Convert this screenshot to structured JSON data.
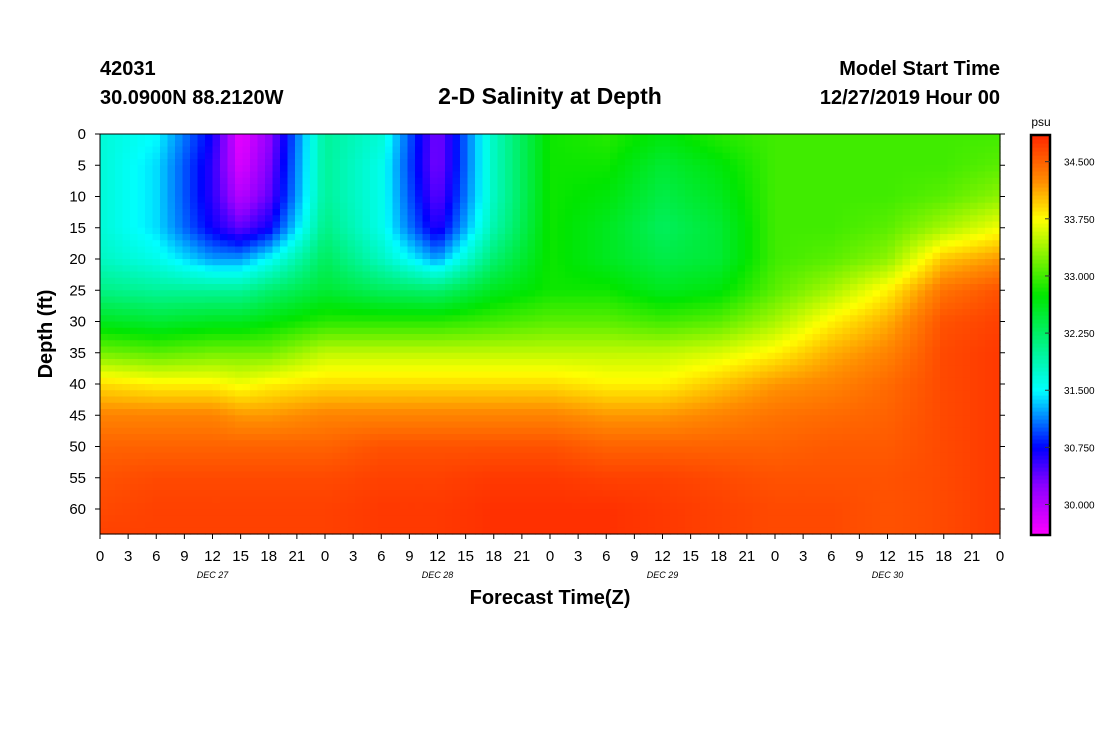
{
  "header": {
    "station_id": "42031",
    "location": "30.0900N 88.2120W",
    "title": "2-D Salinity at Depth",
    "model_start_label": "Model Start Time",
    "model_start_value": "12/27/2019 Hour 00"
  },
  "chart_data": {
    "type": "heatmap",
    "title": "2-D Salinity at Depth",
    "xlabel": "Forecast Time(Z)",
    "ylabel": "Depth (ft)",
    "xlim_hours": [
      0,
      96
    ],
    "ylim_ft": [
      0,
      64
    ],
    "x_tick_labels": [
      "0",
      "3",
      "6",
      "9",
      "12",
      "15",
      "18",
      "21",
      "0",
      "3",
      "6",
      "9",
      "12",
      "15",
      "18",
      "21",
      "0",
      "3",
      "6",
      "9",
      "12",
      "15",
      "18",
      "21",
      "0",
      "3",
      "6",
      "9",
      "12",
      "15",
      "18",
      "21",
      "0"
    ],
    "day_labels": [
      {
        "label": "DEC 27",
        "hour": 12
      },
      {
        "label": "DEC 28",
        "hour": 36
      },
      {
        "label": "DEC 29",
        "hour": 60
      },
      {
        "label": "DEC 30",
        "hour": 84
      }
    ],
    "y_ticks": [
      0,
      5,
      10,
      15,
      20,
      25,
      30,
      35,
      40,
      45,
      50,
      55,
      60
    ],
    "colorbar": {
      "unit": "psu",
      "min": 29.6,
      "max": 34.85,
      "ticks": [
        30.0,
        30.75,
        31.5,
        32.25,
        33.0,
        33.75,
        34.5
      ],
      "tick_labels": [
        "30.000",
        "30.750",
        "31.500",
        "32.250",
        "33.000",
        "33.750",
        "34.500"
      ]
    },
    "grid_hours": [
      0,
      6,
      12,
      15,
      18,
      24,
      30,
      36,
      42,
      48,
      54,
      60,
      66,
      72,
      78,
      84,
      90,
      96
    ],
    "grid_depths_ft": [
      0,
      5,
      10,
      15,
      20,
      25,
      30,
      35,
      40,
      45,
      50,
      55,
      60,
      64
    ],
    "salinity_psu": [
      [
        31.7,
        31.7,
        31.7,
        31.7,
        31.8,
        32.1,
        32.6,
        33.2,
        33.9,
        34.3,
        34.5,
        34.6,
        34.65,
        34.7
      ],
      [
        31.5,
        31.4,
        31.4,
        31.4,
        31.6,
        32.0,
        32.5,
        33.1,
        33.8,
        34.3,
        34.5,
        34.65,
        34.7,
        34.7
      ],
      [
        30.7,
        30.6,
        30.6,
        30.7,
        31.2,
        32.0,
        32.6,
        33.2,
        33.8,
        34.3,
        34.5,
        34.65,
        34.7,
        34.7
      ],
      [
        29.7,
        29.8,
        30.0,
        30.4,
        31.2,
        32.0,
        32.6,
        33.2,
        33.7,
        34.2,
        34.5,
        34.65,
        34.7,
        34.7
      ],
      [
        30.2,
        30.3,
        30.4,
        30.7,
        31.5,
        32.2,
        32.7,
        33.2,
        33.8,
        34.2,
        34.5,
        34.65,
        34.7,
        34.7
      ],
      [
        32.0,
        32.0,
        32.0,
        32.1,
        32.3,
        32.5,
        32.9,
        33.5,
        33.9,
        34.3,
        34.5,
        34.65,
        34.7,
        34.7
      ],
      [
        31.7,
        31.6,
        31.6,
        31.6,
        31.8,
        32.3,
        32.9,
        33.5,
        33.9,
        34.3,
        34.6,
        34.7,
        34.75,
        34.75
      ],
      [
        30.3,
        30.3,
        30.4,
        30.6,
        31.2,
        32.2,
        32.9,
        33.5,
        33.9,
        34.3,
        34.6,
        34.7,
        34.75,
        34.75
      ],
      [
        31.8,
        31.8,
        31.8,
        31.9,
        32.2,
        32.6,
        33.0,
        33.5,
        33.9,
        34.3,
        34.6,
        34.75,
        34.8,
        34.8
      ],
      [
        32.8,
        32.8,
        32.8,
        32.8,
        32.8,
        32.8,
        33.1,
        33.5,
        33.9,
        34.3,
        34.6,
        34.75,
        34.8,
        34.8
      ],
      [
        32.9,
        32.8,
        32.7,
        32.6,
        32.6,
        32.8,
        33.1,
        33.5,
        33.8,
        34.2,
        34.5,
        34.7,
        34.8,
        34.8
      ],
      [
        32.7,
        32.5,
        32.4,
        32.3,
        32.4,
        32.6,
        33.0,
        33.5,
        33.8,
        34.2,
        34.5,
        34.7,
        34.75,
        34.75
      ],
      [
        32.9,
        32.7,
        32.6,
        32.5,
        32.5,
        32.7,
        33.1,
        33.6,
        34.0,
        34.3,
        34.5,
        34.65,
        34.7,
        34.7
      ],
      [
        33.0,
        33.0,
        33.0,
        33.0,
        33.0,
        33.1,
        33.4,
        33.8,
        34.2,
        34.4,
        34.5,
        34.6,
        34.65,
        34.65
      ],
      [
        33.0,
        33.0,
        33.0,
        33.0,
        33.1,
        33.4,
        33.8,
        34.1,
        34.3,
        34.45,
        34.55,
        34.6,
        34.65,
        34.65
      ],
      [
        33.0,
        33.0,
        33.0,
        33.1,
        33.3,
        33.8,
        34.1,
        34.3,
        34.45,
        34.5,
        34.55,
        34.6,
        34.6,
        34.6
      ],
      [
        33.0,
        33.0,
        33.1,
        33.4,
        34.0,
        34.4,
        34.6,
        34.65,
        34.65,
        34.65,
        34.65,
        34.65,
        34.65,
        34.65
      ],
      [
        33.0,
        33.1,
        33.3,
        33.7,
        34.2,
        34.6,
        34.7,
        34.75,
        34.75,
        34.75,
        34.75,
        34.75,
        34.75,
        34.75
      ]
    ]
  }
}
